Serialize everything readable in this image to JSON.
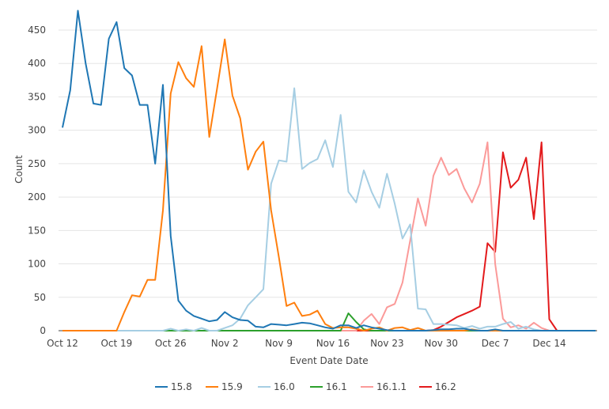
{
  "chart_data": {
    "type": "line",
    "title": "",
    "xlabel": "Event Date Date",
    "ylabel": "Count",
    "ylim": [
      0,
      480
    ],
    "yticks": [
      0,
      50,
      100,
      150,
      200,
      250,
      300,
      350,
      400,
      450
    ],
    "xtick_labels": [
      "Oct 12",
      "Oct 19",
      "Oct 26",
      "Nov 2",
      "Nov 9",
      "Nov 16",
      "Nov 23",
      "Nov 30",
      "Dec 7",
      "Dec 14"
    ],
    "grid": true,
    "legend": "bottom",
    "x": [
      "Oct 12",
      "Oct 13",
      "Oct 14",
      "Oct 15",
      "Oct 16",
      "Oct 17",
      "Oct 18",
      "Oct 19",
      "Oct 20",
      "Oct 21",
      "Oct 22",
      "Oct 23",
      "Oct 24",
      "Oct 25",
      "Oct 26",
      "Oct 27",
      "Oct 28",
      "Oct 29",
      "Oct 30",
      "Oct 31",
      "Nov 1",
      "Nov 2",
      "Nov 3",
      "Nov 4",
      "Nov 5",
      "Nov 6",
      "Nov 7",
      "Nov 8",
      "Nov 9",
      "Nov 10",
      "Nov 11",
      "Nov 12",
      "Nov 13",
      "Nov 14",
      "Nov 15",
      "Nov 16",
      "Nov 17",
      "Nov 18",
      "Nov 19",
      "Nov 20",
      "Nov 21",
      "Nov 22",
      "Nov 23",
      "Nov 24",
      "Nov 25",
      "Nov 26",
      "Nov 27",
      "Nov 28",
      "Nov 29",
      "Nov 30",
      "Dec 1",
      "Dec 2",
      "Dec 3",
      "Dec 4",
      "Dec 5",
      "Dec 6",
      "Dec 7",
      "Dec 8",
      "Dec 9",
      "Dec 10",
      "Dec 11",
      "Dec 12",
      "Dec 13",
      "Dec 14",
      "Dec 15",
      "Dec 16",
      "Dec 17",
      "Dec 18",
      "Dec 19",
      "Dec 20"
    ],
    "series": [
      {
        "name": "15.8",
        "color": "#1f77b4",
        "values": [
          304,
          360,
          479,
          400,
          340,
          338,
          437,
          462,
          393,
          382,
          338,
          338,
          250,
          368,
          142,
          45,
          30,
          22,
          18,
          14,
          16,
          28,
          20,
          16,
          15,
          6,
          5,
          10,
          9,
          8,
          10,
          12,
          11,
          8,
          5,
          3,
          8,
          8,
          4,
          8,
          5,
          3,
          1,
          0,
          0,
          0,
          0,
          0,
          1,
          2,
          2,
          3,
          3,
          1,
          0,
          0,
          2,
          0,
          0,
          0,
          0,
          0,
          0,
          0,
          0,
          0,
          0,
          0,
          0,
          0
        ]
      },
      {
        "name": "15.9",
        "color": "#ff7f0e",
        "values": [
          0,
          0,
          0,
          0,
          0,
          0,
          0,
          0,
          28,
          53,
          51,
          76,
          76,
          180,
          355,
          402,
          378,
          365,
          426,
          290,
          362,
          436,
          352,
          318,
          241,
          268,
          283,
          180,
          110,
          37,
          42,
          22,
          24,
          30,
          10,
          4,
          5,
          5,
          3,
          0,
          3,
          5,
          0,
          4,
          5,
          1,
          4,
          0,
          0,
          0,
          0,
          0,
          0,
          2,
          0,
          0,
          0,
          0,
          0,
          0,
          0,
          0,
          0,
          0,
          0,
          0,
          0,
          0,
          0,
          0
        ]
      },
      {
        "name": "16.0",
        "color": "#a6cee3",
        "values": [
          0,
          0,
          0,
          0,
          0,
          0,
          0,
          0,
          0,
          0,
          0,
          0,
          0,
          0,
          3,
          0,
          2,
          0,
          4,
          0,
          0,
          4,
          8,
          18,
          38,
          50,
          62,
          220,
          255,
          253,
          363,
          242,
          251,
          257,
          285,
          245,
          323,
          208,
          192,
          240,
          208,
          184,
          235,
          190,
          138,
          159,
          33,
          32,
          10,
          10,
          9,
          8,
          4,
          7,
          3,
          6,
          6,
          10,
          13,
          3,
          6,
          2,
          0,
          0,
          0,
          0,
          0,
          0,
          0,
          0
        ]
      },
      {
        "name": "16.1",
        "color": "#2ca02c",
        "values": [
          0,
          0,
          0,
          0,
          0,
          0,
          0,
          0,
          0,
          0,
          0,
          0,
          0,
          0,
          0,
          0,
          0,
          0,
          0,
          0,
          0,
          0,
          0,
          0,
          0,
          0,
          0,
          0,
          0,
          0,
          0,
          0,
          0,
          0,
          0,
          0,
          0,
          26,
          13,
          2,
          0,
          0,
          0,
          0,
          0,
          0,
          0,
          0,
          0,
          0,
          0,
          0,
          0,
          0,
          0,
          0,
          0,
          0,
          0,
          0,
          0,
          0,
          0,
          0,
          0,
          0,
          0,
          0,
          0,
          0
        ]
      },
      {
        "name": "16.1.1",
        "color": "#fb9a99",
        "values": [
          0,
          0,
          0,
          0,
          0,
          0,
          0,
          0,
          0,
          0,
          0,
          0,
          0,
          0,
          0,
          0,
          0,
          0,
          0,
          0,
          0,
          0,
          0,
          0,
          0,
          0,
          0,
          0,
          0,
          0,
          0,
          0,
          0,
          0,
          0,
          0,
          0,
          0,
          0,
          15,
          25,
          10,
          35,
          40,
          72,
          135,
          198,
          157,
          232,
          259,
          233,
          242,
          213,
          192,
          220,
          282,
          100,
          18,
          5,
          8,
          3,
          12,
          4,
          0,
          0,
          0,
          0,
          0,
          0,
          0
        ]
      },
      {
        "name": "16.2",
        "color": "#e31a1c",
        "values": [
          0,
          0,
          0,
          0,
          0,
          0,
          0,
          0,
          0,
          0,
          0,
          0,
          0,
          0,
          0,
          0,
          0,
          0,
          0,
          0,
          0,
          0,
          0,
          0,
          0,
          0,
          0,
          0,
          0,
          0,
          0,
          0,
          0,
          0,
          0,
          0,
          0,
          0,
          0,
          0,
          0,
          0,
          0,
          0,
          0,
          0,
          0,
          0,
          1,
          6,
          13,
          20,
          25,
          30,
          36,
          131,
          118,
          267,
          214,
          226,
          259,
          167,
          282,
          17,
          0,
          0,
          0,
          0,
          0,
          0
        ]
      }
    ]
  }
}
